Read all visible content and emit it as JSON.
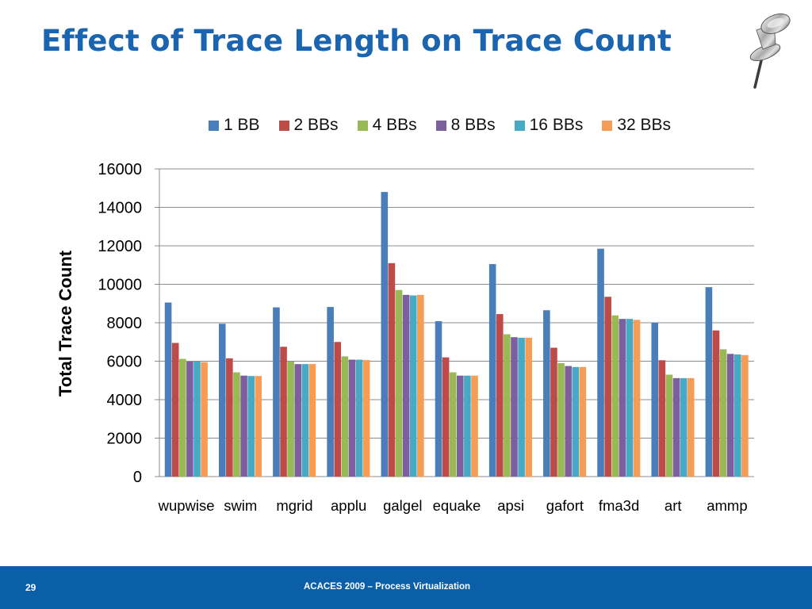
{
  "slide": {
    "title": "Effect of Trace Length on Trace Count",
    "page_number": "29",
    "footer_text": "ACACES 2009 – Process Virtualization"
  },
  "chart_data": {
    "type": "bar",
    "ylabel": "Total Trace Count",
    "xlabel": "",
    "ylim": [
      0,
      16000
    ],
    "yticks": [
      0,
      2000,
      4000,
      6000,
      8000,
      10000,
      12000,
      14000,
      16000
    ],
    "grid": true,
    "legend_position": "top",
    "categories": [
      "wupwise",
      "swim",
      "mgrid",
      "applu",
      "galgel",
      "equake",
      "apsi",
      "gafort",
      "fma3d",
      "art",
      "ammp"
    ],
    "series": [
      {
        "name": "1 BB",
        "color": "#4a7ebb",
        "values": [
          9050,
          7950,
          8800,
          8820,
          14800,
          8080,
          11050,
          8650,
          11850,
          8000,
          9850
        ]
      },
      {
        "name": "2 BBs",
        "color": "#be4b48",
        "values": [
          6950,
          6150,
          6750,
          7000,
          11100,
          6200,
          8450,
          6700,
          9350,
          6050,
          7600
        ]
      },
      {
        "name": "4 BBs",
        "color": "#98b954",
        "values": [
          6120,
          5420,
          5980,
          6250,
          9700,
          5420,
          7400,
          5900,
          8380,
          5300,
          6620
        ]
      },
      {
        "name": "8 BBs",
        "color": "#7d5fa0",
        "values": [
          5980,
          5250,
          5850,
          6080,
          9450,
          5250,
          7250,
          5750,
          8200,
          5120,
          6380
        ]
      },
      {
        "name": "16 BBs",
        "color": "#46aac5",
        "values": [
          5980,
          5230,
          5850,
          6080,
          9420,
          5250,
          7220,
          5700,
          8200,
          5120,
          6350
        ]
      },
      {
        "name": "32 BBs",
        "color": "#f59d56",
        "values": [
          5950,
          5230,
          5850,
          6060,
          9450,
          5250,
          7220,
          5700,
          8150,
          5120,
          6320
        ]
      }
    ]
  }
}
